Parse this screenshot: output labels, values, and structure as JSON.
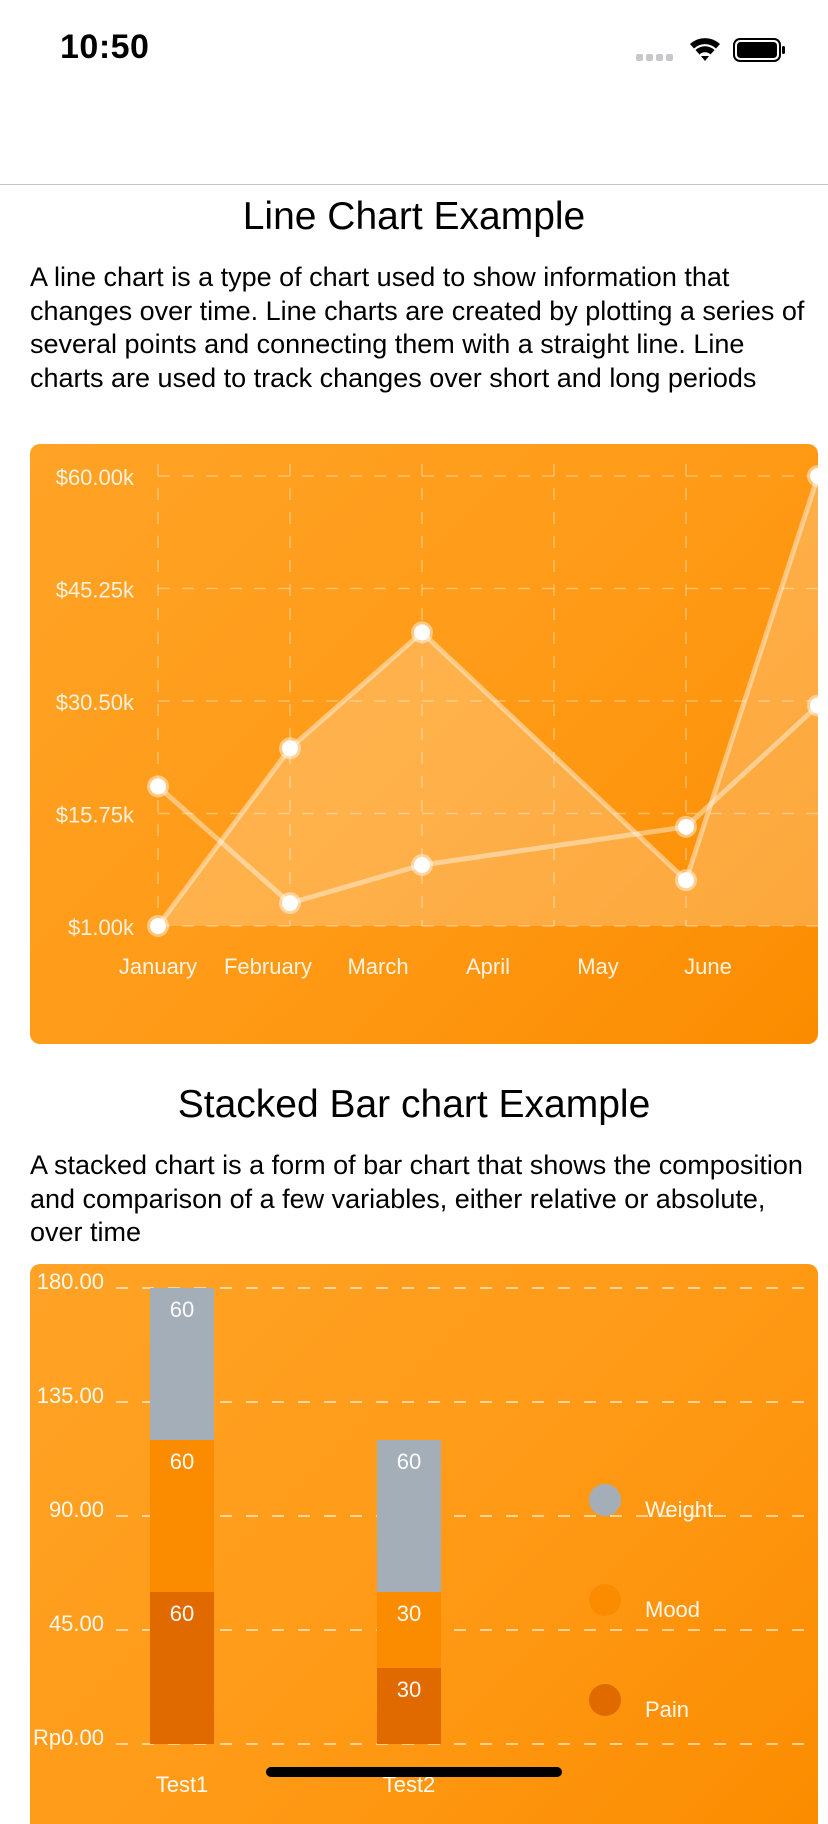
{
  "status_bar": {
    "time": "10:50"
  },
  "line_section": {
    "title": "Line Chart Example",
    "description": "A line chart is a type of chart used to show information that changes over time. Line charts are created by plotting a series of several points and connecting them with a straight line. Line charts are used to track changes over short and long periods"
  },
  "bar_section": {
    "title": "Stacked Bar chart Example",
    "description": "A stacked chart is a form of bar chart that shows the composition and comparison of a few variables, either relative or absolute, over time"
  },
  "chart_data": [
    {
      "type": "line",
      "categories": [
        "January",
        "February",
        "March",
        "April",
        "May",
        "June"
      ],
      "ylim": [
        1000,
        60000
      ],
      "y_tick_labels": [
        "$60.00k",
        "$45.25k",
        "$30.50k",
        "$15.75k",
        "$1.00k"
      ],
      "grid": true,
      "series": [
        {
          "values": [
            1000,
            24300,
            39500,
            null,
            7000,
            60000
          ],
          "fill": true
        },
        {
          "values": [
            19300,
            4000,
            9000,
            null,
            14000,
            29900
          ],
          "fill": false
        }
      ],
      "colors": {
        "background": "#ff9a16",
        "line": "#ffffff"
      }
    },
    {
      "type": "bar",
      "stacked": true,
      "categories": [
        "Test1",
        "Test2"
      ],
      "ylim": [
        0,
        180
      ],
      "y_tick_labels": [
        "180.00",
        "135.00",
        "90.00",
        "45.00",
        "Rp0.00"
      ],
      "grid": true,
      "legend_position": "right",
      "series": [
        {
          "name": "Pain",
          "values": [
            60,
            30
          ],
          "color": "#e06a00"
        },
        {
          "name": "Mood",
          "values": [
            60,
            30
          ],
          "color": "#fb8c00"
        },
        {
          "name": "Weight",
          "values": [
            60,
            60
          ],
          "color": "#a4aeb9"
        }
      ]
    }
  ]
}
